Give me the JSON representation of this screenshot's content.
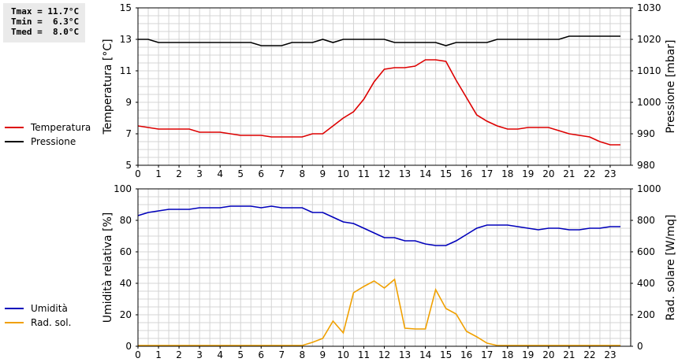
{
  "stats": {
    "tmax": "Tmax = 11.7°C",
    "tmin": "Tmin =  6.3°C",
    "tmed": "Tmed =  8.0°C"
  },
  "chart_data": [
    {
      "type": "line",
      "x_ticks": [
        "0",
        "1",
        "2",
        "3",
        "4",
        "5",
        "6",
        "7",
        "8",
        "9",
        "10",
        "11",
        "12",
        "13",
        "14",
        "15",
        "16",
        "17",
        "18",
        "19",
        "20",
        "21",
        "22",
        "23"
      ],
      "xlim": [
        0,
        24
      ],
      "ylabel_left": "Temperatura [°C]",
      "ylabel_right": "Pressione [mbar]",
      "ylim_left": [
        5,
        15
      ],
      "ylim_right": [
        980,
        1030
      ],
      "yticks_left": [
        "5",
        "7",
        "9",
        "11",
        "13",
        "15"
      ],
      "yticks_right": [
        "980",
        "990",
        "1000",
        "1010",
        "1020",
        "1030"
      ],
      "grid": true,
      "legend_position": "left",
      "series": [
        {
          "name": "Temperatura",
          "axis": "left",
          "color": "#dd0000",
          "x": [
            0,
            0.5,
            1,
            1.5,
            2,
            2.5,
            3,
            3.5,
            4,
            4.5,
            5,
            5.5,
            6,
            6.5,
            7,
            7.5,
            8,
            8.5,
            9,
            9.5,
            10,
            10.5,
            11,
            11.5,
            12,
            12.5,
            13,
            13.5,
            14,
            14.5,
            15,
            15.5,
            16,
            16.5,
            17,
            17.5,
            18,
            18.5,
            19,
            19.5,
            20,
            20.5,
            21,
            21.5,
            22,
            22.5,
            23,
            23.5
          ],
          "values": [
            7.5,
            7.4,
            7.3,
            7.3,
            7.3,
            7.3,
            7.1,
            7.1,
            7.1,
            7.0,
            6.9,
            6.9,
            6.9,
            6.8,
            6.8,
            6.8,
            6.8,
            7.0,
            7.0,
            7.5,
            8.0,
            8.4,
            9.2,
            10.3,
            11.1,
            11.2,
            11.2,
            11.3,
            11.7,
            11.7,
            11.6,
            10.4,
            9.3,
            8.2,
            7.8,
            7.5,
            7.3,
            7.3,
            7.4,
            7.4,
            7.4,
            7.2,
            7.0,
            6.9,
            6.8,
            6.5,
            6.3,
            6.3
          ]
        },
        {
          "name": "Pressione",
          "axis": "right",
          "color": "#000000",
          "x": [
            0,
            0.5,
            1,
            1.5,
            2,
            2.5,
            3,
            3.5,
            4,
            4.5,
            5,
            5.5,
            6,
            6.5,
            7,
            7.5,
            8,
            8.5,
            9,
            9.5,
            10,
            10.5,
            11,
            11.5,
            12,
            12.5,
            13,
            13.5,
            14,
            14.5,
            15,
            15.5,
            16,
            16.5,
            17,
            17.5,
            18,
            18.5,
            19,
            19.5,
            20,
            20.5,
            21,
            21.5,
            22,
            22.5,
            23,
            23.5
          ],
          "values": [
            1020,
            1020,
            1019,
            1019,
            1019,
            1019,
            1019,
            1019,
            1019,
            1019,
            1019,
            1019,
            1018,
            1018,
            1018,
            1019,
            1019,
            1019,
            1020,
            1019,
            1020,
            1020,
            1020,
            1020,
            1020,
            1019,
            1019,
            1019,
            1019,
            1019,
            1018,
            1019,
            1019,
            1019,
            1019,
            1020,
            1020,
            1020,
            1020,
            1020,
            1020,
            1020,
            1021,
            1021,
            1021,
            1021,
            1021,
            1021
          ]
        }
      ]
    },
    {
      "type": "line",
      "x_ticks": [
        "0",
        "1",
        "2",
        "3",
        "4",
        "5",
        "6",
        "7",
        "8",
        "9",
        "10",
        "11",
        "12",
        "13",
        "14",
        "15",
        "16",
        "17",
        "18",
        "19",
        "20",
        "21",
        "22",
        "23"
      ],
      "xlim": [
        0,
        24
      ],
      "ylabel_left": "Umidità relativa [%]",
      "ylabel_right": "Rad. solare [W/mq]",
      "ylim_left": [
        0,
        100
      ],
      "ylim_right": [
        0,
        1000
      ],
      "yticks_left": [
        "0",
        "20",
        "40",
        "60",
        "80",
        "100"
      ],
      "yticks_right": [
        "0",
        "200",
        "400",
        "600",
        "800",
        "1000"
      ],
      "grid": true,
      "legend_position": "left",
      "series": [
        {
          "name": "Umidità",
          "axis": "left",
          "color": "#0000bb",
          "x": [
            0,
            0.5,
            1,
            1.5,
            2,
            2.5,
            3,
            3.5,
            4,
            4.5,
            5,
            5.5,
            6,
            6.5,
            7,
            7.5,
            8,
            8.5,
            9,
            9.5,
            10,
            10.5,
            11,
            11.5,
            12,
            12.5,
            13,
            13.5,
            14,
            14.5,
            15,
            15.5,
            16,
            16.5,
            17,
            17.5,
            18,
            18.5,
            19,
            19.5,
            20,
            20.5,
            21,
            21.5,
            22,
            22.5,
            23,
            23.5
          ],
          "values": [
            83,
            85,
            86,
            87,
            87,
            87,
            88,
            88,
            88,
            89,
            89,
            89,
            88,
            89,
            88,
            88,
            88,
            85,
            85,
            82,
            79,
            78,
            75,
            72,
            69,
            69,
            67,
            67,
            65,
            64,
            64,
            67,
            71,
            75,
            77,
            77,
            77,
            76,
            75,
            74,
            75,
            75,
            74,
            74,
            75,
            75,
            76,
            76
          ]
        },
        {
          "name": "Rad. sol.",
          "axis": "right",
          "color": "#f0a000",
          "x": [
            0,
            0.5,
            1,
            1.5,
            2,
            2.5,
            3,
            3.5,
            4,
            4.5,
            5,
            5.5,
            6,
            6.5,
            7,
            7.5,
            8,
            8.5,
            9,
            9.5,
            10,
            10.5,
            11,
            11.5,
            12,
            12.5,
            13,
            13.5,
            14,
            14.5,
            15,
            15.5,
            16,
            16.5,
            17,
            17.5,
            18,
            18.5,
            19,
            19.5,
            20,
            20.5,
            21,
            21.5,
            22,
            22.5,
            23,
            23.5
          ],
          "values": [
            5,
            5,
            5,
            5,
            5,
            5,
            5,
            5,
            5,
            5,
            5,
            5,
            5,
            5,
            5,
            5,
            5,
            25,
            50,
            160,
            85,
            340,
            380,
            415,
            370,
            425,
            115,
            110,
            110,
            360,
            240,
            205,
            95,
            60,
            20,
            5,
            5,
            5,
            5,
            5,
            5,
            5,
            5,
            5,
            5,
            5,
            5,
            5
          ]
        }
      ]
    }
  ]
}
